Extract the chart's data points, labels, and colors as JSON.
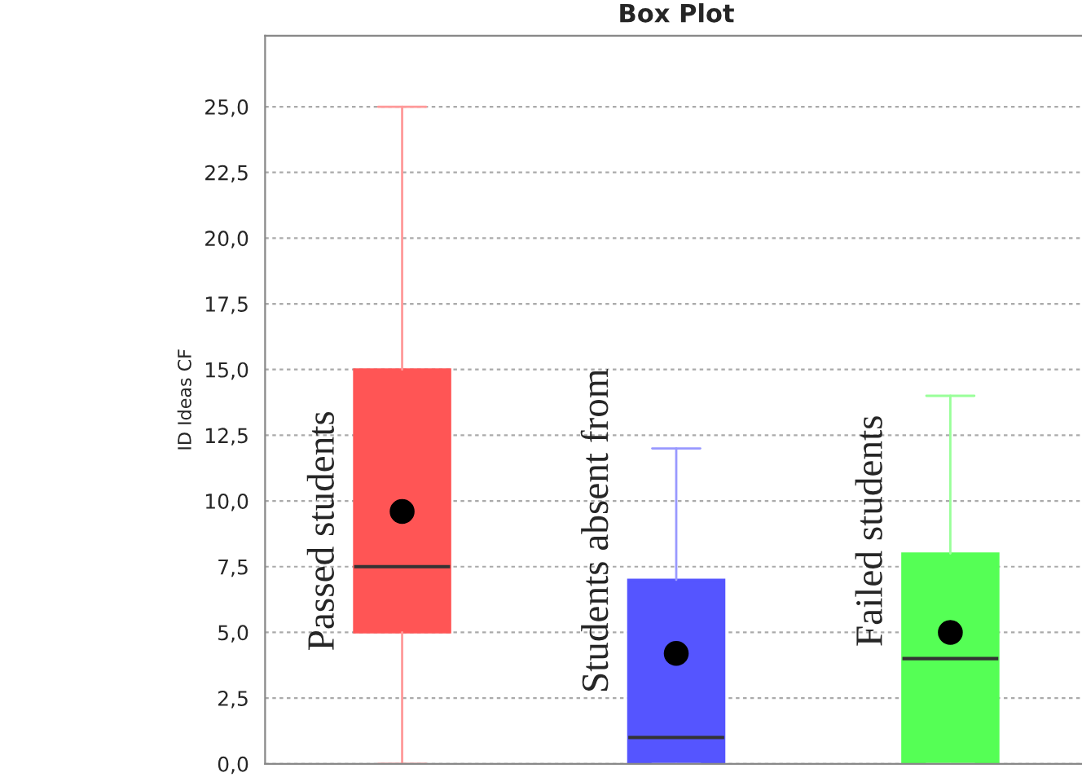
{
  "chart_data": {
    "type": "box",
    "title": "Box Plot",
    "ylabel": "ID Ideas CF",
    "categories": [
      "Passed students",
      "Students absent from",
      "Failed students"
    ],
    "colors": [
      "#ff5555",
      "#5555ff",
      "#55ff55"
    ],
    "boxes": [
      {
        "low": 0,
        "q1": 5,
        "median": 7.5,
        "q3": 15,
        "high": 25,
        "mean": 9.6
      },
      {
        "low": 0,
        "q1": 0,
        "median": 1,
        "q3": 7,
        "high": 12,
        "mean": 4.2
      },
      {
        "low": 0,
        "q1": 0,
        "median": 4,
        "q3": 8,
        "high": 14,
        "mean": 5.0
      }
    ],
    "ylim": [
      0,
      27.7
    ],
    "yticks": [
      {
        "value": 0,
        "label": "0,0"
      },
      {
        "value": 2.5,
        "label": "2,5"
      },
      {
        "value": 5,
        "label": "5,0"
      },
      {
        "value": 7.5,
        "label": "7,5"
      },
      {
        "value": 10,
        "label": "10,0"
      },
      {
        "value": 12.5,
        "label": "12,5"
      },
      {
        "value": 15,
        "label": "15,0"
      },
      {
        "value": 17.5,
        "label": "17,5"
      },
      {
        "value": 20,
        "label": "20,0"
      },
      {
        "value": 22.5,
        "label": "22,5"
      },
      {
        "value": 25,
        "label": "25,0"
      }
    ],
    "grid": "y",
    "legend": false
  }
}
